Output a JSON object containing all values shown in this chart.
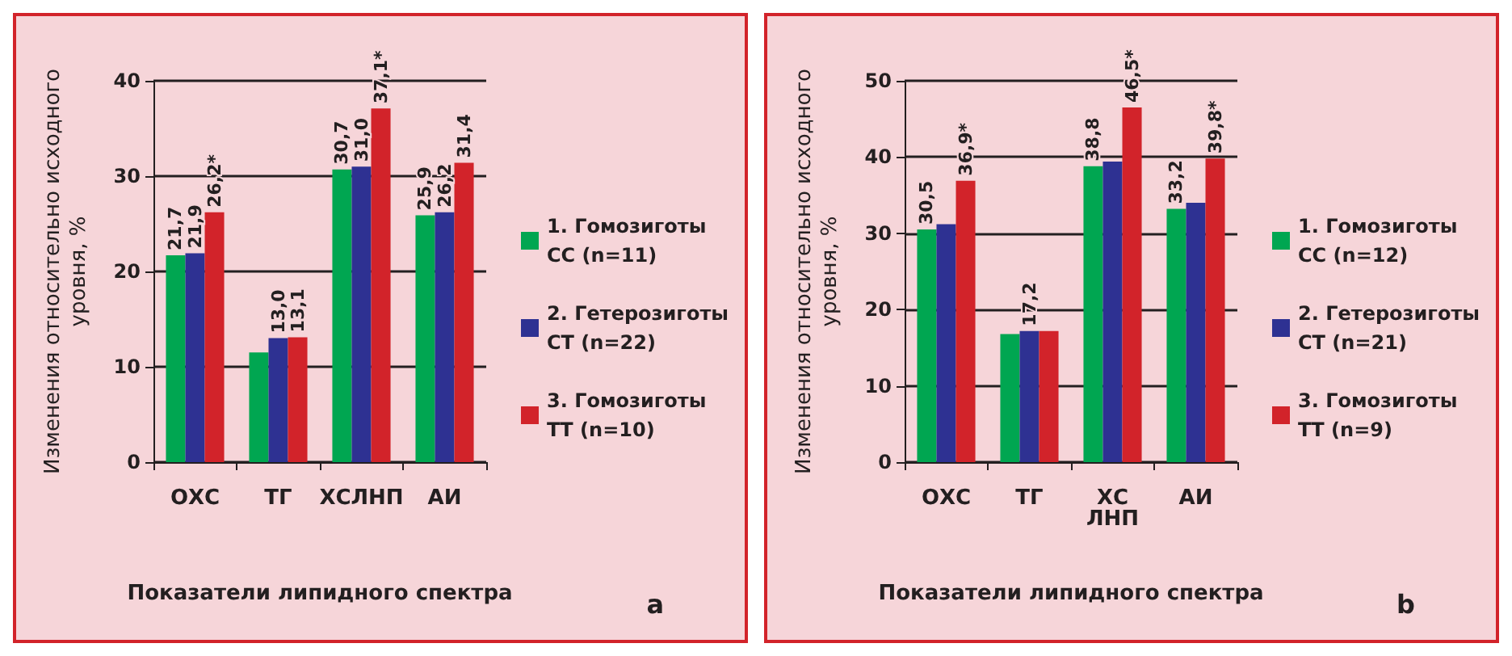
{
  "chart_data": [
    {
      "type": "bar",
      "categories": [
        "ОХС",
        "ТГ",
        "ХСЛНП",
        "АИ"
      ],
      "xlabel": "Показатели липидного спектра",
      "ylabel": "Изменения относительно исходного уровня, %",
      "ylim": [
        0,
        40
      ],
      "yticks": [
        0,
        10,
        20,
        30,
        40
      ],
      "grid": "y",
      "legend": "right",
      "annotations": [
        "a"
      ],
      "series": [
        {
          "name": "1. Гомозиготы СС (n=11)",
          "color": "#00a651",
          "values": [
            21.7,
            11.5,
            30.7,
            25.9
          ],
          "value_labels": [
            "21,7",
            null,
            "30,7",
            "25,9"
          ]
        },
        {
          "name": "2. Гетерозиготы СТ (n=22)",
          "color": "#2e3192",
          "values": [
            21.9,
            13.0,
            31.0,
            26.2
          ],
          "value_labels": [
            "21,9",
            "13,0",
            "31,0",
            "26,2"
          ]
        },
        {
          "name": "3. Гомозиготы ТТ (n=10)",
          "color": "#d2232a",
          "values": [
            26.2,
            13.1,
            37.1,
            31.4
          ],
          "value_labels": [
            "26,2*",
            "13,1",
            "37,1*",
            "31,4"
          ]
        }
      ]
    },
    {
      "type": "bar",
      "categories": [
        "ОХС",
        "ТГ",
        "ХС ЛНП",
        "АИ"
      ],
      "xlabel": "Показатели липидного спектра",
      "ylabel": "Изменения относительно исходного уровня, %",
      "ylim": [
        0,
        50
      ],
      "yticks": [
        0,
        10,
        20,
        30,
        40,
        50
      ],
      "grid": "y",
      "legend": "right",
      "annotations": [
        "b"
      ],
      "series": [
        {
          "name": "1. Гомозиготы СС (n=12)",
          "color": "#00a651",
          "values": [
            30.5,
            16.8,
            38.8,
            33.2
          ],
          "value_labels": [
            "30,5",
            null,
            "38,8",
            "33,2"
          ]
        },
        {
          "name": "2. Гетерозиготы СТ (n=21)",
          "color": "#2e3192",
          "values": [
            31.2,
            17.2,
            39.4,
            34.0
          ],
          "value_labels": [
            null,
            "17,2",
            null,
            null
          ]
        },
        {
          "name": "3. Гомозиготы ТТ (n=9)",
          "color": "#d2232a",
          "values": [
            36.9,
            17.2,
            46.5,
            39.8
          ],
          "value_labels": [
            "36,9*",
            null,
            "46,5*",
            "39,8*"
          ]
        }
      ]
    }
  ]
}
